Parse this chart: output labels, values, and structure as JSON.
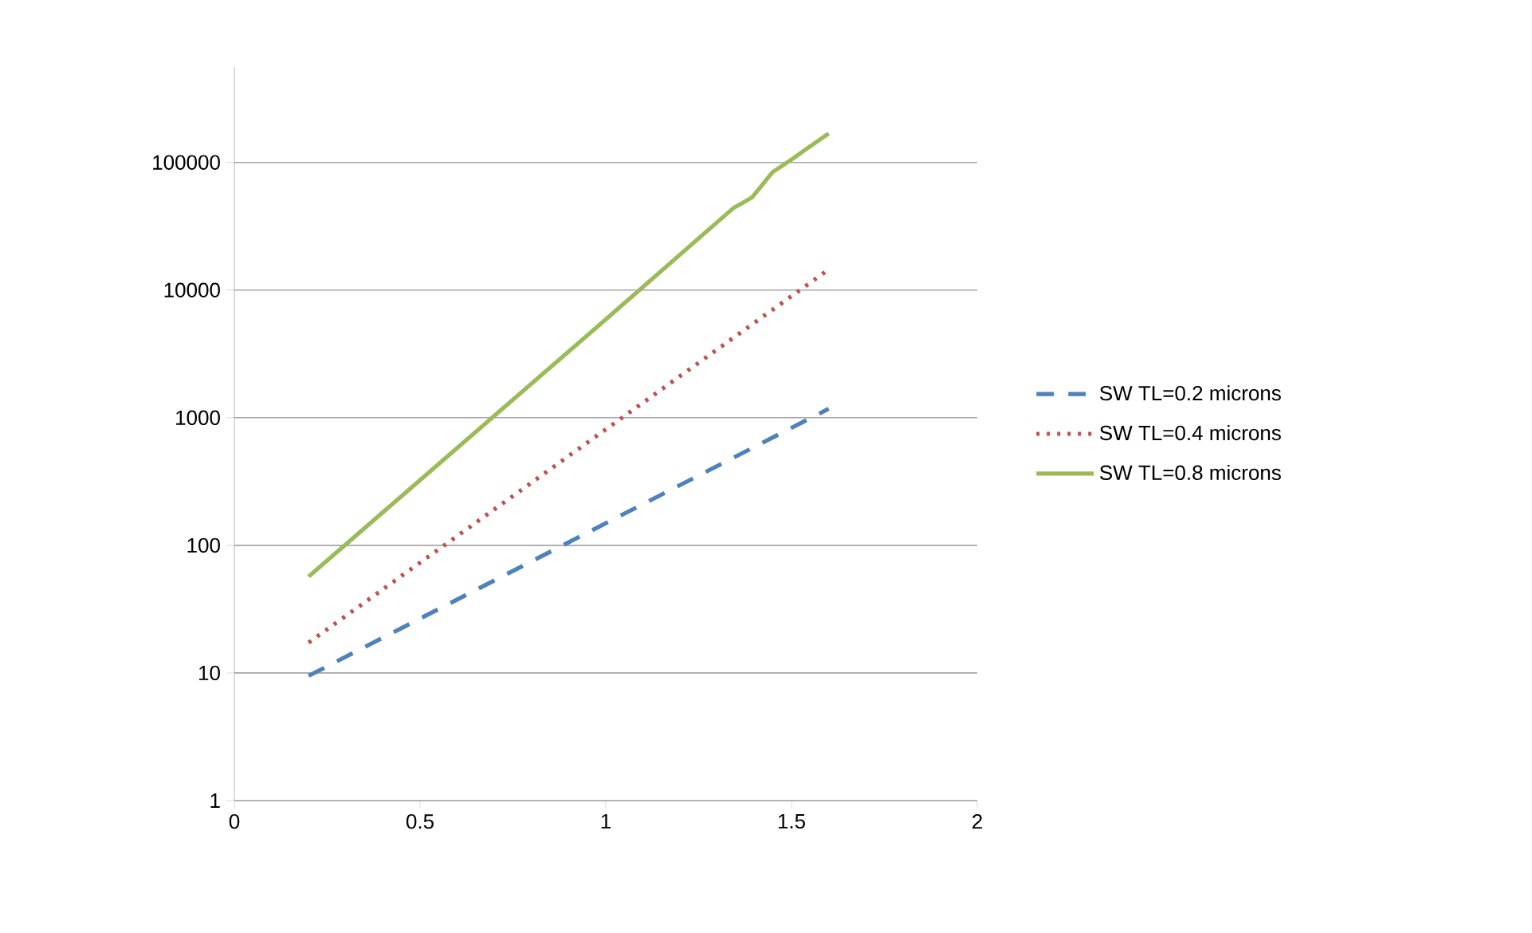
{
  "chart_data": {
    "type": "line",
    "log": "y",
    "grid": "y",
    "legend": "right",
    "xlim": [
      0,
      2
    ],
    "xticks": [
      0,
      0.5,
      1,
      1.5,
      2
    ],
    "ylim": [
      1,
      560000
    ],
    "yticks": [
      1,
      10,
      100,
      1000,
      10000,
      100000
    ],
    "series": [
      {
        "name": "SW TL=0.2 microns",
        "color": "#4f81bd",
        "line_style": "dashed",
        "x": [
          0.2,
          1.6
        ],
        "values": [
          9.5,
          1175
        ]
      },
      {
        "name": "SW TL=0.4 microns",
        "color": "#c0504d",
        "line_style": "dotted",
        "x": [
          0.2,
          1.6
        ],
        "values": [
          17.3,
          14500
        ]
      },
      {
        "name": "SW TL=0.8 microns",
        "color": "#9bbb59",
        "line_style": "solid",
        "x": [
          0.2,
          1.0,
          1.343,
          1.393,
          1.42,
          1.449,
          1.499,
          1.6
        ],
        "values": [
          57,
          5900,
          43800,
          53000,
          66000,
          84000,
          105000,
          169000
        ]
      }
    ]
  }
}
